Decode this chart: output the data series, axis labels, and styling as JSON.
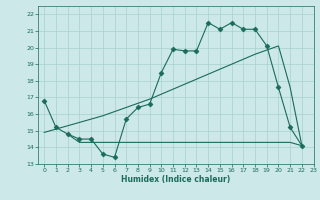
{
  "line1_x": [
    0,
    1,
    2,
    3,
    4,
    5,
    6,
    7,
    8,
    9,
    10,
    11,
    12,
    13,
    14,
    15,
    16,
    17,
    18,
    19,
    20,
    21,
    22
  ],
  "line1_y": [
    16.8,
    15.2,
    14.8,
    14.5,
    14.5,
    13.6,
    13.4,
    15.7,
    16.4,
    16.6,
    18.5,
    19.9,
    19.8,
    19.8,
    21.5,
    21.1,
    21.5,
    21.1,
    21.1,
    20.1,
    17.6,
    15.2,
    14.1
  ],
  "line2_x": [
    0,
    1,
    2,
    3,
    4,
    5,
    6,
    7,
    8,
    9,
    10,
    11,
    12,
    13,
    14,
    15,
    16,
    17,
    18,
    19,
    20,
    21,
    22
  ],
  "line2_y": [
    14.9,
    15.1,
    15.3,
    15.5,
    15.7,
    15.9,
    16.15,
    16.4,
    16.65,
    16.9,
    17.2,
    17.5,
    17.8,
    18.1,
    18.4,
    18.7,
    19.0,
    19.3,
    19.6,
    19.85,
    20.1,
    17.6,
    14.1
  ],
  "line3_x": [
    2,
    3,
    4,
    5,
    6,
    7,
    8,
    9,
    10,
    11,
    12,
    13,
    14,
    15,
    16,
    17,
    18,
    19,
    20,
    21,
    22
  ],
  "line3_y": [
    14.8,
    14.3,
    14.3,
    14.3,
    14.3,
    14.3,
    14.3,
    14.3,
    14.3,
    14.3,
    14.3,
    14.3,
    14.3,
    14.3,
    14.3,
    14.3,
    14.3,
    14.3,
    14.3,
    14.3,
    14.1
  ],
  "color": "#1a6b5a",
  "bg_color": "#cce8e8",
  "grid_color": "#a8d0d0",
  "xlabel": "Humidex (Indice chaleur)",
  "ylim": [
    13,
    22.5
  ],
  "xlim": [
    -0.5,
    23.0
  ],
  "yticks": [
    13,
    14,
    15,
    16,
    17,
    18,
    19,
    20,
    21,
    22
  ],
  "xticks": [
    0,
    1,
    2,
    3,
    4,
    5,
    6,
    7,
    8,
    9,
    10,
    11,
    12,
    13,
    14,
    15,
    16,
    17,
    18,
    19,
    20,
    21,
    22,
    23
  ],
  "markersize": 2.5
}
